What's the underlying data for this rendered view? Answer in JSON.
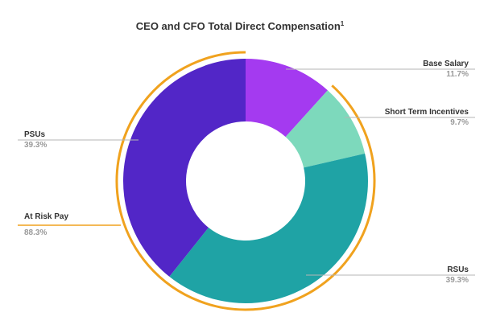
{
  "chart_data": {
    "type": "pie",
    "title": "CEO and CFO Total Direct Compensation",
    "title_superscript": "1",
    "subtitle": "",
    "slices": [
      {
        "name": "Base Salary",
        "value": 11.7,
        "label": "11.7%",
        "color": "#a43af0"
      },
      {
        "name": "Short Term Incentives",
        "value": 9.7,
        "label": "9.7%",
        "color": "#7dd9bc"
      },
      {
        "name": "RSUs",
        "value": 39.3,
        "label": "39.3%",
        "color": "#1fa3a5"
      },
      {
        "name": "PSUs",
        "value": 39.3,
        "label": "39.3%",
        "color": "#5226c7"
      }
    ],
    "annotation": {
      "name": "At Risk Pay",
      "value": 88.3,
      "label": "88.3%",
      "color": "#f0a21e"
    },
    "legend": "none"
  }
}
